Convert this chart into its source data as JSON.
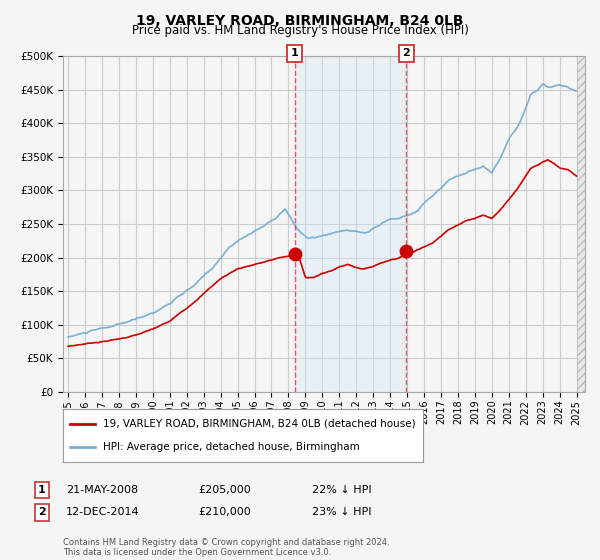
{
  "title": "19, VARLEY ROAD, BIRMINGHAM, B24 0LB",
  "subtitle": "Price paid vs. HM Land Registry's House Price Index (HPI)",
  "xlim_start": 1994.7,
  "xlim_end": 2025.5,
  "ylim_min": 0,
  "ylim_max": 500000,
  "yticks": [
    0,
    50000,
    100000,
    150000,
    200000,
    250000,
    300000,
    350000,
    400000,
    450000,
    500000
  ],
  "ytick_labels": [
    "£0",
    "£50K",
    "£100K",
    "£150K",
    "£200K",
    "£250K",
    "£300K",
    "£350K",
    "£400K",
    "£450K",
    "£500K"
  ],
  "background_color": "#f5f5f5",
  "plot_bg_color": "#f5f5f5",
  "grid_color": "#dddddd",
  "hpi_line_color": "#7ab0d4",
  "price_line_color": "#cc0000",
  "sale1_x": 2008.38,
  "sale1_y": 205000,
  "sale1_label": "1",
  "sale1_date": "21-MAY-2008",
  "sale1_price": "£205,000",
  "sale1_note": "22% ↓ HPI",
  "sale2_x": 2014.95,
  "sale2_y": 210000,
  "sale2_label": "2",
  "sale2_date": "12-DEC-2014",
  "sale2_price": "£210,000",
  "sale2_note": "23% ↓ HPI",
  "legend_line1": "19, VARLEY ROAD, BIRMINGHAM, B24 0LB (detached house)",
  "legend_line2": "HPI: Average price, detached house, Birmingham",
  "footer": "Contains HM Land Registry data © Crown copyright and database right 2024.\nThis data is licensed under the Open Government Licence v3.0.",
  "xticks": [
    1995,
    1996,
    1997,
    1998,
    1999,
    2000,
    2001,
    2002,
    2003,
    2004,
    2005,
    2006,
    2007,
    2008,
    2009,
    2010,
    2011,
    2012,
    2013,
    2014,
    2015,
    2016,
    2017,
    2018,
    2019,
    2020,
    2021,
    2022,
    2023,
    2024,
    2025
  ],
  "shade_color": "#d0e8f8",
  "vline_color": "#dd4444"
}
